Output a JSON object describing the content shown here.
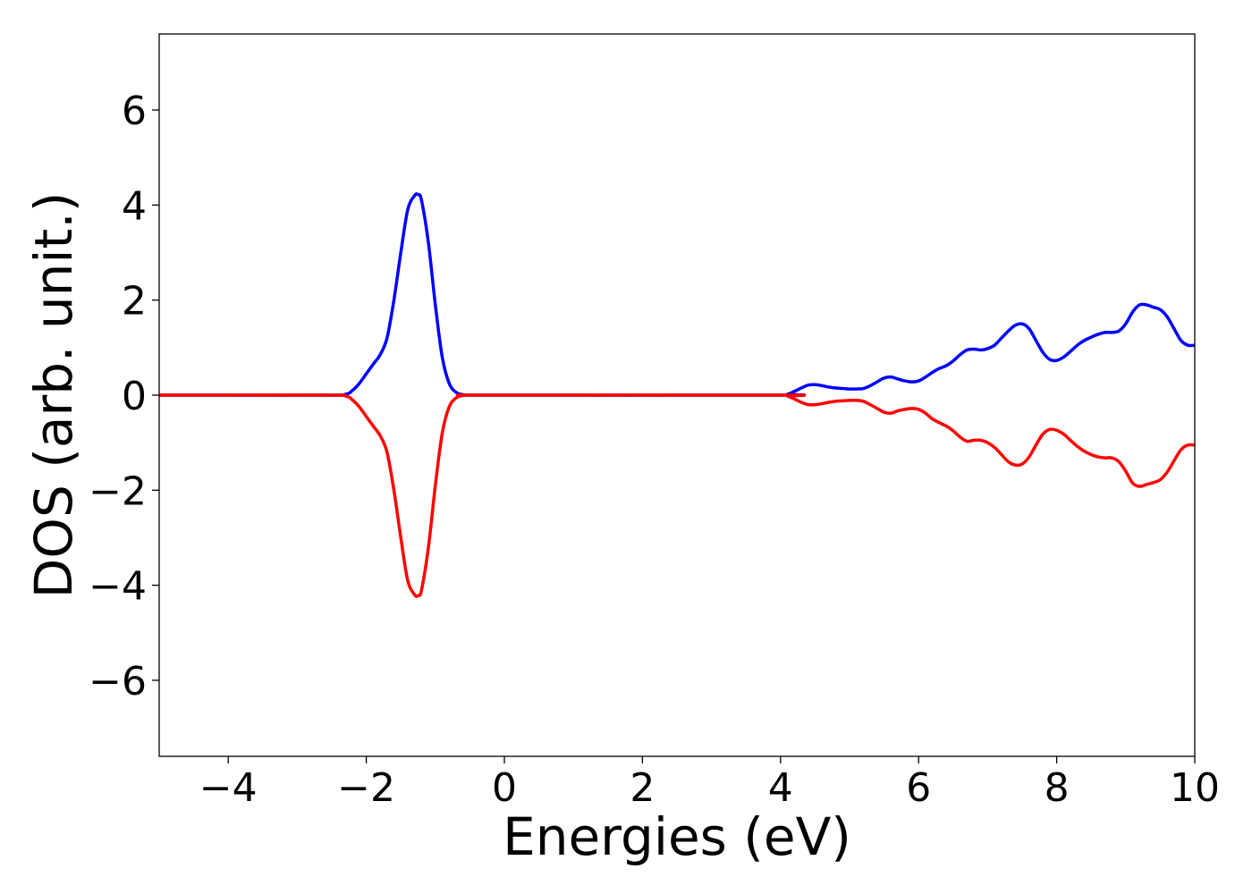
{
  "chart_data": {
    "type": "line",
    "title": "",
    "xlabel": "Energies (eV)",
    "ylabel": "DOS (arb. unit.)",
    "xlim": [
      -5,
      10
    ],
    "ylim": [
      -7.6,
      7.6
    ],
    "xticks": [
      -4,
      -2,
      0,
      2,
      4,
      6,
      8,
      10
    ],
    "yticks": [
      -6,
      -4,
      -2,
      0,
      2,
      4,
      6
    ],
    "xtick_labels": [
      "−4",
      "−2",
      "0",
      "2",
      "4",
      "6",
      "8",
      "10"
    ],
    "ytick_labels": [
      "−6",
      "−4",
      "−2",
      "0",
      "2",
      "4",
      "6"
    ],
    "grid": false,
    "legend": "none",
    "series": [
      {
        "color": "#0000ff",
        "x": [
          -5,
          -2.6,
          -2.3,
          -2.2,
          -2.1,
          -2.0,
          -1.9,
          -1.8,
          -1.7,
          -1.6,
          -1.5,
          -1.4,
          -1.3,
          -1.25,
          -1.2,
          -1.1,
          -1.0,
          -0.9,
          -0.8,
          -0.7,
          -0.6,
          -0.5,
          -0.3,
          4.0,
          4.1,
          4.2,
          4.3,
          4.4,
          4.5,
          4.6,
          4.7,
          4.8,
          4.9,
          5.0,
          5.1,
          5.2,
          5.3,
          5.4,
          5.5,
          5.6,
          5.7,
          5.8,
          5.9,
          6.0,
          6.1,
          6.2,
          6.3,
          6.4,
          6.5,
          6.6,
          6.7,
          6.8,
          6.9,
          7.0,
          7.1,
          7.2,
          7.3,
          7.4,
          7.5,
          7.6,
          7.7,
          7.8,
          7.9,
          8.0,
          8.1,
          8.2,
          8.3,
          8.4,
          8.5,
          8.6,
          8.7,
          8.8,
          8.9,
          9.0,
          9.1,
          9.2,
          9.3,
          9.4,
          9.5,
          9.6,
          9.7,
          9.8,
          9.9,
          10.0
        ],
        "y": [
          0,
          0,
          0.02,
          0.1,
          0.25,
          0.45,
          0.65,
          0.85,
          1.2,
          2.0,
          3.0,
          3.9,
          4.2,
          4.22,
          4.1,
          3.2,
          1.9,
          0.8,
          0.25,
          0.06,
          0.01,
          0,
          0,
          0,
          0.02,
          0.08,
          0.15,
          0.21,
          0.22,
          0.2,
          0.17,
          0.15,
          0.14,
          0.13,
          0.13,
          0.14,
          0.2,
          0.28,
          0.36,
          0.38,
          0.34,
          0.3,
          0.28,
          0.3,
          0.38,
          0.48,
          0.56,
          0.62,
          0.72,
          0.85,
          0.95,
          0.97,
          0.95,
          0.98,
          1.05,
          1.2,
          1.35,
          1.47,
          1.5,
          1.4,
          1.15,
          0.9,
          0.75,
          0.73,
          0.8,
          0.92,
          1.05,
          1.15,
          1.22,
          1.28,
          1.32,
          1.32,
          1.35,
          1.5,
          1.75,
          1.9,
          1.9,
          1.85,
          1.8,
          1.65,
          1.4,
          1.15,
          1.05,
          1.05
        ]
      },
      {
        "color": "#ff0000",
        "x": [
          -5,
          -2.6,
          -2.3,
          -2.2,
          -2.1,
          -2.0,
          -1.9,
          -1.8,
          -1.7,
          -1.6,
          -1.5,
          -1.4,
          -1.3,
          -1.25,
          -1.2,
          -1.1,
          -1.0,
          -0.9,
          -0.8,
          -0.7,
          -0.6,
          -0.5,
          -0.3,
          4.0,
          4.1,
          4.2,
          4.3,
          4.4,
          4.5,
          4.6,
          4.7,
          4.8,
          4.9,
          5.0,
          5.1,
          5.2,
          5.3,
          5.4,
          5.5,
          5.6,
          5.7,
          5.8,
          5.9,
          6.0,
          6.1,
          6.2,
          6.3,
          6.4,
          6.5,
          6.6,
          6.7,
          6.8,
          6.9,
          7.0,
          7.1,
          7.2,
          7.3,
          7.4,
          7.5,
          7.6,
          7.7,
          7.8,
          7.9,
          8.0,
          8.1,
          8.2,
          8.3,
          8.4,
          8.5,
          8.6,
          8.7,
          8.8,
          8.9,
          9.0,
          9.1,
          9.2,
          9.3,
          9.4,
          9.5,
          9.6,
          9.7,
          9.8,
          9.9,
          10.0
        ],
        "y": [
          0,
          0,
          -0.02,
          -0.1,
          -0.25,
          -0.45,
          -0.65,
          -0.85,
          -1.2,
          -2.0,
          -3.0,
          -3.9,
          -4.2,
          -4.22,
          -4.1,
          -3.2,
          -1.9,
          -0.8,
          -0.25,
          -0.06,
          -0.01,
          0,
          0,
          0,
          -0.02,
          -0.08,
          -0.15,
          -0.2,
          -0.2,
          -0.18,
          -0.15,
          -0.13,
          -0.12,
          -0.11,
          -0.11,
          -0.13,
          -0.2,
          -0.28,
          -0.36,
          -0.38,
          -0.33,
          -0.3,
          -0.28,
          -0.3,
          -0.38,
          -0.5,
          -0.58,
          -0.65,
          -0.75,
          -0.88,
          -0.97,
          -0.95,
          -0.95,
          -1.0,
          -1.1,
          -1.25,
          -1.4,
          -1.47,
          -1.45,
          -1.3,
          -1.05,
          -0.82,
          -0.72,
          -0.74,
          -0.82,
          -0.95,
          -1.08,
          -1.18,
          -1.25,
          -1.3,
          -1.32,
          -1.32,
          -1.4,
          -1.6,
          -1.85,
          -1.92,
          -1.88,
          -1.84,
          -1.78,
          -1.62,
          -1.38,
          -1.15,
          -1.05,
          -1.05
        ]
      }
    ]
  }
}
